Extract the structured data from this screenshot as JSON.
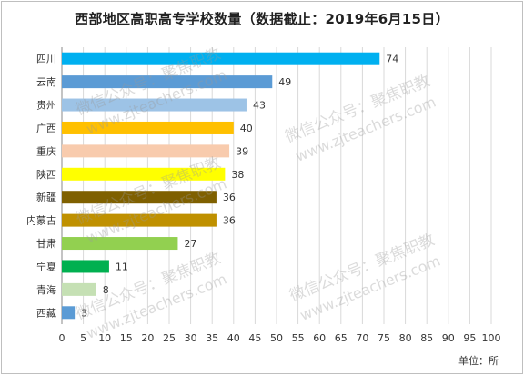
{
  "title": "西部地区高职高专学校数量（数据截止：2019年6月15日）",
  "unit_label": "单位：所",
  "watermark_text": "微信公众号：聚焦职教",
  "watermark_url": "www.zjteachers.com",
  "chart_data": {
    "type": "bar",
    "orientation": "horizontal",
    "categories": [
      "四川",
      "云南",
      "贵州",
      "广西",
      "重庆",
      "陕西",
      "新疆",
      "内蒙古",
      "甘肃",
      "宁夏",
      "青海",
      "西藏"
    ],
    "values": [
      74,
      49,
      43,
      40,
      39,
      38,
      36,
      36,
      27,
      11,
      8,
      3
    ],
    "colors": [
      "#00b0f0",
      "#5b9bd5",
      "#9dc3e6",
      "#ffc000",
      "#f8cbad",
      "#ffff00",
      "#7f6000",
      "#bf9000",
      "#92d050",
      "#00b050",
      "#c5e0b4",
      "#5b9bd5"
    ],
    "xlim": [
      0,
      100
    ],
    "xticks": [
      0,
      5,
      10,
      15,
      20,
      25,
      30,
      35,
      40,
      45,
      50,
      55,
      60,
      65,
      70,
      75,
      80,
      85,
      90,
      95,
      100
    ],
    "grid": true
  }
}
